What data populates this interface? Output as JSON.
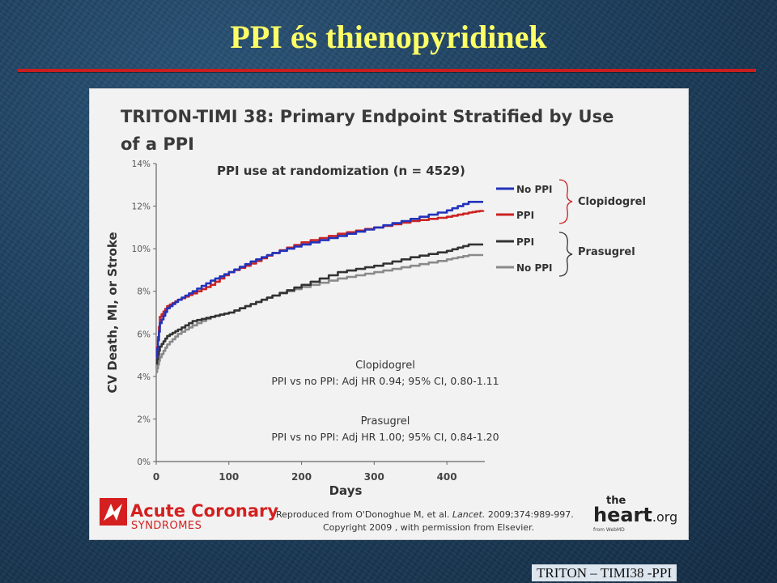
{
  "slide": {
    "title": "PPI és thienopyridinek",
    "footer": "TRITON – TIMI38 -PPI"
  },
  "figure": {
    "credit_line1": "Reproduced from O'Donoghue M, et al.",
    "credit_journal": "Lancet.",
    "credit_citation": "2009;374:989-997.",
    "credit_line2": "Copyright 2009 , with permission from Elsevier.",
    "logo_acute": "Acute Coronary",
    "logo_syndromes": "SYNDROMES",
    "logo_the": "the",
    "logo_heart": "heart",
    "logo_org": ".org",
    "logo_from": "from WebMD"
  },
  "chart_data": {
    "type": "line",
    "title": "TRITON-TIMI 38: Primary Endpoint Stratified by Use of a PPI",
    "title_line1": "TRITON-TIMI 38: Primary Endpoint Stratified by Use",
    "title_line2": "of a PPI",
    "subtitle": "PPI use at randomization (n = 4529)",
    "xlabel": "Days",
    "ylabel": "CV Death, MI, or Stroke",
    "xlim": [
      0,
      450
    ],
    "ylim": [
      0,
      14
    ],
    "x_ticks": [
      "0",
      "100",
      "200",
      "300",
      "400"
    ],
    "y_ticks": [
      "0%",
      "2%",
      "4%",
      "6%",
      "8%",
      "10%",
      "12%",
      "14%"
    ],
    "grid": false,
    "legend_groups": [
      {
        "name": "Clopidogrel",
        "entries": [
          "No PPI",
          "PPI"
        ]
      },
      {
        "name": "Prasugrel",
        "entries": [
          "PPI",
          "No PPI"
        ]
      }
    ],
    "series": [
      {
        "name": "No PPI",
        "group": "Clopidogrel",
        "color": "#2233bb",
        "x": [
          0,
          5,
          15,
          30,
          50,
          75,
          100,
          130,
          160,
          200,
          250,
          300,
          350,
          400,
          430,
          450
        ],
        "y": [
          4.9,
          6.5,
          7.2,
          7.6,
          8.0,
          8.5,
          8.9,
          9.4,
          9.8,
          10.2,
          10.6,
          11.0,
          11.4,
          11.8,
          12.2,
          12.2
        ]
      },
      {
        "name": "PPI",
        "group": "Clopidogrel",
        "color": "#cc2222",
        "x": [
          0,
          5,
          15,
          30,
          50,
          75,
          100,
          130,
          160,
          200,
          250,
          300,
          350,
          400,
          430,
          450
        ],
        "y": [
          4.9,
          6.8,
          7.3,
          7.6,
          7.9,
          8.3,
          8.9,
          9.3,
          9.8,
          10.3,
          10.7,
          11.0,
          11.3,
          11.5,
          11.7,
          11.8
        ]
      },
      {
        "name": "PPI",
        "group": "Prasugrel",
        "color": "#333333",
        "x": [
          0,
          5,
          15,
          30,
          50,
          75,
          100,
          130,
          160,
          200,
          250,
          300,
          350,
          400,
          430,
          450
        ],
        "y": [
          4.6,
          5.4,
          5.9,
          6.2,
          6.6,
          6.8,
          7.0,
          7.4,
          7.8,
          8.3,
          8.9,
          9.2,
          9.6,
          9.9,
          10.2,
          10.2
        ]
      },
      {
        "name": "No PPI",
        "group": "Prasugrel",
        "color": "#8a8a8a",
        "x": [
          0,
          5,
          15,
          30,
          50,
          75,
          100,
          130,
          160,
          200,
          250,
          300,
          350,
          400,
          430,
          450
        ],
        "y": [
          4.2,
          4.9,
          5.5,
          6.0,
          6.4,
          6.8,
          7.0,
          7.4,
          7.8,
          8.2,
          8.6,
          8.9,
          9.2,
          9.5,
          9.7,
          9.7
        ]
      }
    ],
    "annotations": [
      {
        "label": "Clopidogrel",
        "text": "PPI vs no PPI: Adj HR 0.94; 95% CI, 0.80-1.11"
      },
      {
        "label": "Prasugrel",
        "text": "PPI vs no PPI: Adj HR 1.00; 95% CI, 0.84-1.20"
      }
    ]
  }
}
